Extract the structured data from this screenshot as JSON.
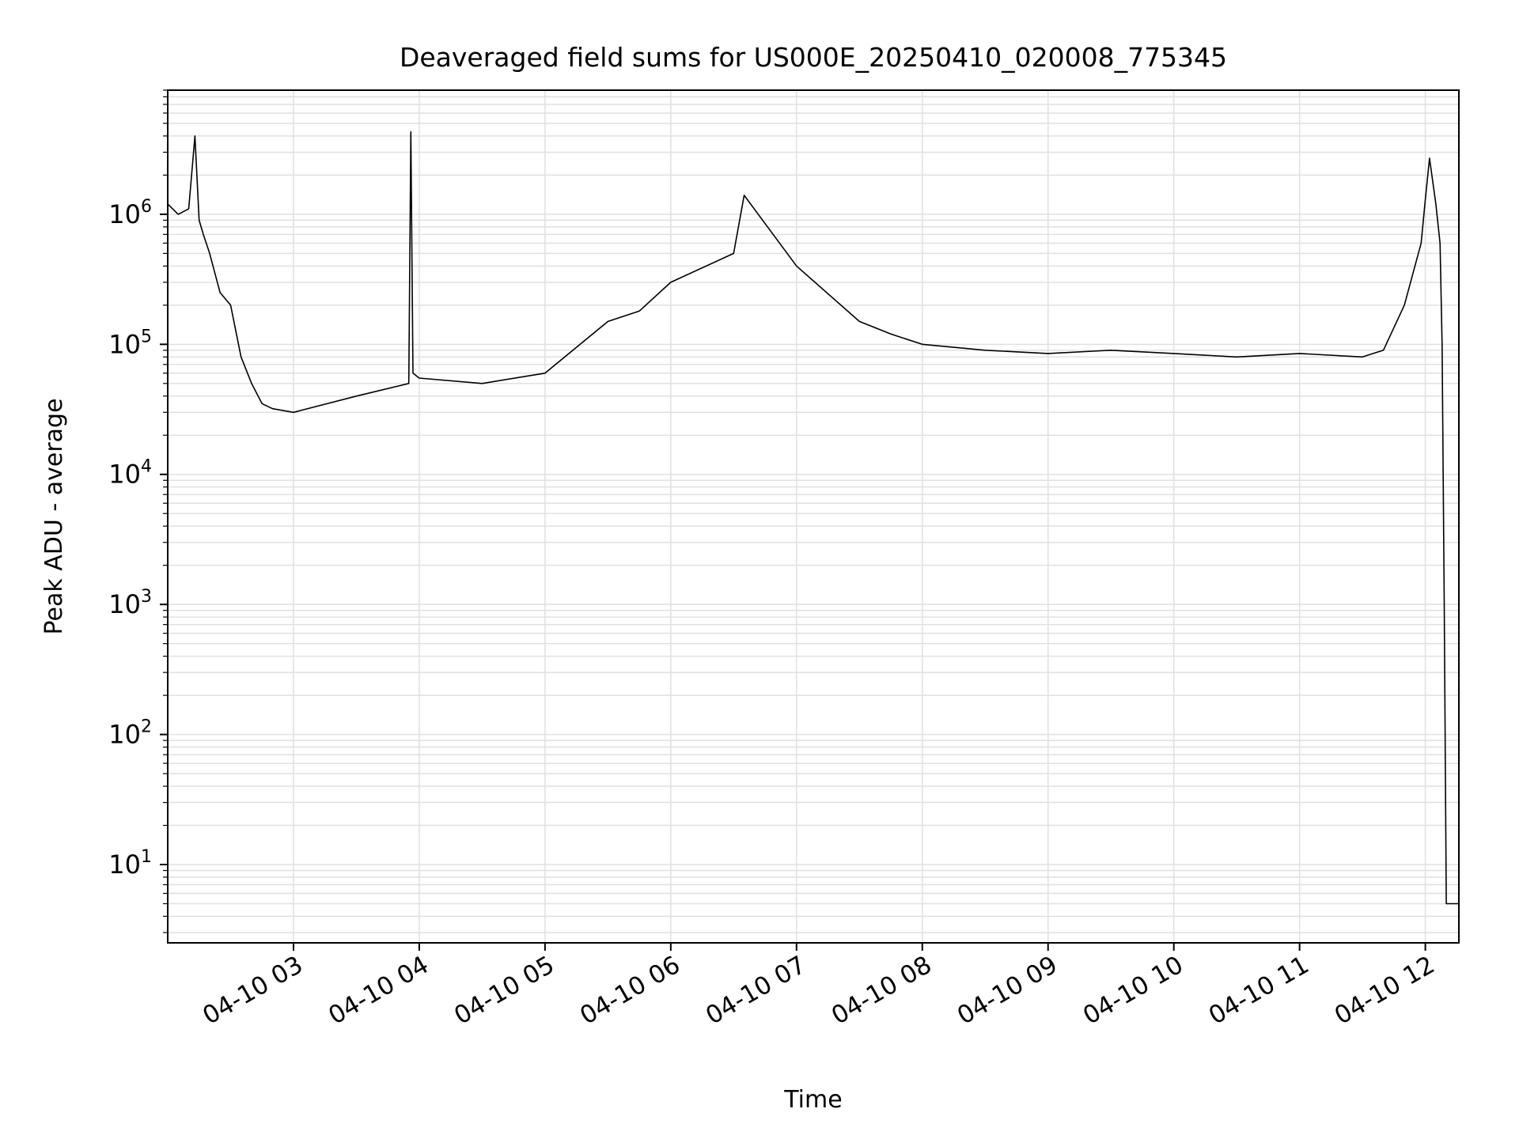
{
  "chart_data": {
    "type": "line",
    "title": "Deaveraged field sums for US000E_20250410_020008_775345",
    "xlabel": "Time",
    "ylabel": "Peak ADU - average",
    "y_scale": "log",
    "ylim": [
      2.5,
      9000000
    ],
    "xlim": [
      "2025-04-10 02:00",
      "2025-04-10 12:16"
    ],
    "grid": true,
    "legend": "none",
    "line_color": "#000000",
    "grid_color": "#e0e0e0",
    "x_ticks": [
      "2025-04-10 03:00",
      "2025-04-10 04:00",
      "2025-04-10 05:00",
      "2025-04-10 06:00",
      "2025-04-10 07:00",
      "2025-04-10 08:00",
      "2025-04-10 09:00",
      "2025-04-10 10:00",
      "2025-04-10 11:00",
      "2025-04-10 12:00"
    ],
    "x_tick_labels": [
      "04-10 03",
      "04-10 04",
      "04-10 05",
      "04-10 06",
      "04-10 07",
      "04-10 08",
      "04-10 09",
      "04-10 10",
      "04-10 11",
      "04-10 12"
    ],
    "y_ticks": [
      10,
      100,
      1000,
      10000,
      100000,
      1000000
    ],
    "y_tick_labels": [
      {
        "base": "10",
        "exp": "1"
      },
      {
        "base": "10",
        "exp": "2"
      },
      {
        "base": "10",
        "exp": "3"
      },
      {
        "base": "10",
        "exp": "4"
      },
      {
        "base": "10",
        "exp": "5"
      },
      {
        "base": "10",
        "exp": "6"
      }
    ],
    "series": [
      {
        "x": [
          "2025-04-10 02:00",
          "2025-04-10 02:05",
          "2025-04-10 02:10",
          "2025-04-10 02:13",
          "2025-04-10 02:15",
          "2025-04-10 02:17",
          "2025-04-10 02:20",
          "2025-04-10 02:25",
          "2025-04-10 02:30",
          "2025-04-10 02:35",
          "2025-04-10 02:40",
          "2025-04-10 02:45",
          "2025-04-10 02:50",
          "2025-04-10 03:00",
          "2025-04-10 03:30",
          "2025-04-10 03:55",
          "2025-04-10 03:56",
          "2025-04-10 03:57",
          "2025-04-10 04:00",
          "2025-04-10 04:30",
          "2025-04-10 05:00",
          "2025-04-10 05:30",
          "2025-04-10 05:45",
          "2025-04-10 06:00",
          "2025-04-10 06:30",
          "2025-04-10 06:35",
          "2025-04-10 07:00",
          "2025-04-10 07:30",
          "2025-04-10 07:45",
          "2025-04-10 08:00",
          "2025-04-10 08:30",
          "2025-04-10 09:00",
          "2025-04-10 09:30",
          "2025-04-10 10:00",
          "2025-04-10 10:30",
          "2025-04-10 11:00",
          "2025-04-10 11:30",
          "2025-04-10 11:40",
          "2025-04-10 11:50",
          "2025-04-10 11:58",
          "2025-04-10 12:00",
          "2025-04-10 12:02",
          "2025-04-10 12:05",
          "2025-04-10 12:07",
          "2025-04-10 12:08",
          "2025-04-10 12:09",
          "2025-04-10 12:10",
          "2025-04-10 12:13",
          "2025-04-10 12:16"
        ],
        "y": [
          1200000,
          1000000,
          1100000,
          4000000,
          900000,
          700000,
          500000,
          250000,
          200000,
          80000,
          50000,
          35000,
          32000,
          30000,
          40000,
          50000,
          4300000,
          60000,
          55000,
          50000,
          60000,
          150000,
          180000,
          300000,
          500000,
          1400000,
          400000,
          150000,
          120000,
          100000,
          90000,
          85000,
          90000,
          85000,
          80000,
          85000,
          80000,
          90000,
          200000,
          600000,
          1300000,
          2700000,
          1200000,
          600000,
          100000,
          1000,
          5,
          5,
          5
        ]
      }
    ]
  }
}
